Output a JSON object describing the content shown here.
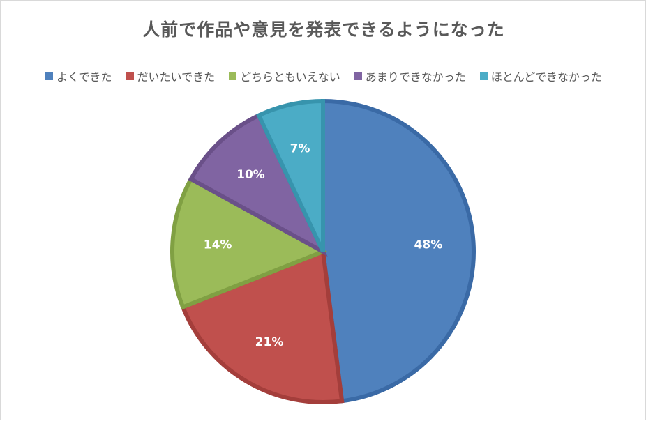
{
  "chart_data": {
    "type": "pie",
    "title": "人前で作品や意見を発表できるようになった",
    "legend_position": "top",
    "categories": [
      "よくできた",
      "だいたいできた",
      "どちらともいえない",
      "あまりできなかった",
      "ほとんどできなかった"
    ],
    "values": [
      48,
      21,
      14,
      10,
      7
    ],
    "labels": [
      "48%",
      "21%",
      "14%",
      "10%",
      "7%"
    ],
    "colors": [
      "#4f81bd",
      "#c0504d",
      "#9bbb59",
      "#8064a2",
      "#4bacc6"
    ],
    "border_colors": [
      "#3a6aa6",
      "#a43e3b",
      "#80a043",
      "#6a5089",
      "#3794ad"
    ]
  }
}
